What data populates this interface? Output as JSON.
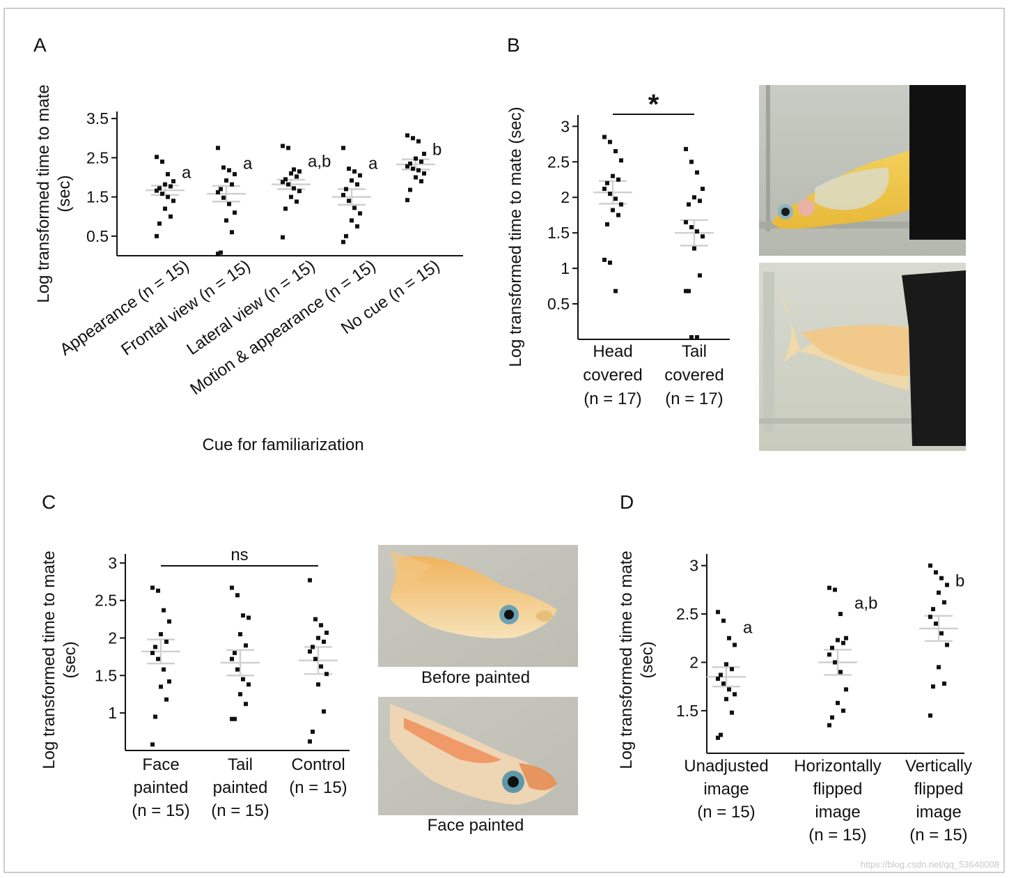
{
  "watermark": "https://blog.csdn.net/qq_53640008",
  "chart_data": [
    {
      "panel": "A",
      "type": "scatter",
      "ylabel": "Log transformed time to mate (sec)",
      "xlabel": "Cue for familiarization",
      "ylim": [
        0,
        3.5
      ],
      "yticks": [
        0.5,
        1.5,
        2.5,
        3.5
      ],
      "categories": [
        "Appearance (n = 15)",
        "Frontal view (n = 15)",
        "Lateral view (n = 15)",
        "Motion & appearance (n = 15)",
        "No cue (n = 15)"
      ],
      "letters": [
        "a",
        "a",
        "a,b",
        "a",
        "b"
      ],
      "mean": [
        1.67,
        1.58,
        1.82,
        1.5,
        2.33
      ],
      "sem": [
        0.12,
        0.2,
        0.12,
        0.2,
        0.13
      ],
      "points": [
        [
          2.52,
          2.4,
          2.08,
          1.9,
          1.82,
          1.77,
          1.72,
          1.66,
          1.58,
          1.5,
          1.4,
          1.2,
          1.0,
          0.82,
          0.5
        ],
        [
          2.75,
          2.25,
          2.18,
          2.08,
          1.92,
          1.82,
          1.7,
          1.62,
          1.48,
          1.32,
          1.1,
          0.9,
          0.6,
          0.08,
          0.05
        ],
        [
          2.8,
          2.75,
          2.2,
          2.15,
          2.1,
          2.02,
          1.95,
          1.88,
          1.82,
          1.72,
          1.65,
          1.5,
          1.38,
          1.2,
          0.47
        ],
        [
          2.75,
          2.22,
          2.15,
          2.05,
          1.92,
          1.82,
          1.7,
          1.55,
          1.4,
          1.22,
          1.08,
          0.9,
          0.75,
          0.5,
          0.35
        ],
        [
          3.07,
          3.0,
          2.92,
          2.6,
          2.48,
          2.4,
          2.35,
          2.28,
          2.22,
          2.18,
          2.1,
          2.0,
          1.9,
          1.68,
          1.42
        ]
      ]
    },
    {
      "panel": "B",
      "type": "scatter",
      "ylabel": "Log transformed time to mate (sec)",
      "ylim": [
        0,
        3
      ],
      "yticks": [
        0.5,
        1,
        1.5,
        2,
        2.5,
        3
      ],
      "categories": [
        "Head covered (n = 17)",
        "Tail covered (n = 17)"
      ],
      "category_lines": [
        [
          "Head",
          "covered",
          "(n = 17)"
        ],
        [
          "Tail",
          "covered",
          "(n = 17)"
        ]
      ],
      "significance": "*",
      "mean": [
        2.07,
        1.5
      ],
      "sem": [
        0.16,
        0.18
      ],
      "points": [
        [
          2.85,
          2.78,
          2.65,
          2.52,
          2.3,
          2.25,
          2.2,
          2.12,
          2.05,
          1.98,
          1.9,
          1.82,
          1.75,
          1.62,
          1.12,
          1.08,
          0.68
        ],
        [
          2.68,
          2.5,
          2.35,
          2.12,
          2.0,
          1.95,
          1.9,
          1.65,
          1.58,
          1.52,
          1.45,
          1.28,
          0.9,
          0.68,
          0.68,
          0.03,
          0.03
        ]
      ]
    },
    {
      "panel": "C",
      "type": "scatter",
      "ylabel": "Log transformed time to mate (sec)",
      "ylim": [
        0.5,
        3
      ],
      "yticks": [
        1,
        1.5,
        2,
        2.5,
        3
      ],
      "categories": [
        "Face painted (n = 15)",
        "Tail painted (n = 15)",
        "Control (n = 15)"
      ],
      "category_lines": [
        [
          "Face",
          "painted",
          "(n = 15)"
        ],
        [
          "Tail",
          "painted",
          "(n = 15)"
        ],
        [
          "Control",
          "(n = 15)"
        ]
      ],
      "significance": "ns",
      "mean": [
        1.82,
        1.67,
        1.7
      ],
      "sem": [
        0.16,
        0.17,
        0.18
      ],
      "points": [
        [
          2.67,
          2.63,
          2.37,
          2.22,
          2.05,
          1.95,
          1.88,
          1.8,
          1.72,
          1.58,
          1.42,
          1.35,
          1.18,
          0.95,
          0.58
        ],
        [
          2.67,
          2.57,
          2.3,
          2.27,
          2.05,
          1.9,
          1.8,
          1.72,
          1.58,
          1.45,
          1.38,
          1.25,
          1.12,
          0.92,
          0.92
        ],
        [
          2.77,
          2.25,
          2.17,
          2.07,
          2.0,
          1.95,
          1.88,
          1.82,
          1.72,
          1.62,
          1.52,
          1.38,
          1.02,
          0.75,
          0.62
        ]
      ]
    },
    {
      "panel": "D",
      "type": "scatter",
      "ylabel": "Log transformed time to mate (sec)",
      "ylim": [
        1,
        3
      ],
      "yticks": [
        1.5,
        2,
        2.5,
        3
      ],
      "categories": [
        "Unadjusted image (n = 15)",
        "Horizontally flipped image (n = 15)",
        "Vertically flipped image (n = 15)"
      ],
      "category_lines": [
        [
          "Unadjusted",
          "image",
          "(n = 15)"
        ],
        [
          "Horizontally",
          "flipped",
          "image",
          "(n = 15)"
        ],
        [
          "Vertically",
          "flipped",
          "image",
          "(n = 15)"
        ]
      ],
      "letters": [
        "a",
        "a,b",
        "b"
      ],
      "mean": [
        1.85,
        2.0,
        2.35
      ],
      "sem": [
        0.1,
        0.13,
        0.13
      ],
      "points": [
        [
          2.52,
          2.43,
          2.25,
          2.18,
          1.98,
          1.93,
          1.87,
          1.83,
          1.78,
          1.72,
          1.67,
          1.62,
          1.48,
          1.25,
          1.22
        ],
        [
          2.77,
          2.75,
          2.5,
          2.25,
          2.23,
          2.2,
          2.15,
          2.08,
          2.0,
          1.9,
          1.72,
          1.58,
          1.5,
          1.43,
          1.35
        ],
        [
          3.0,
          2.93,
          2.87,
          2.8,
          2.72,
          2.62,
          2.55,
          2.47,
          2.4,
          2.3,
          2.18,
          1.95,
          1.78,
          1.75,
          1.45
        ]
      ]
    }
  ],
  "photos": {
    "B_top": {
      "caption": ""
    },
    "B_bottom": {
      "caption": ""
    },
    "C_top": {
      "caption": "Before painted"
    },
    "C_bottom": {
      "caption": "Face painted"
    }
  }
}
